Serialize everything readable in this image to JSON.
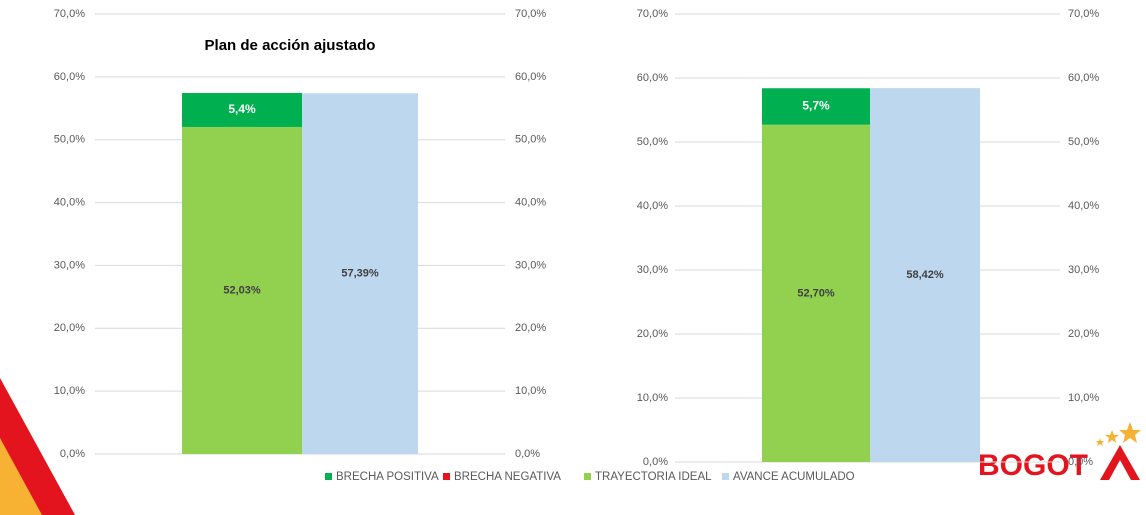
{
  "chart_data": [
    {
      "type": "bar",
      "title": "Plan de acción ajustado",
      "categories": [
        null
      ],
      "ylim": [
        0,
        70
      ],
      "yticks": [
        {
          "value": 0,
          "label": "0,0%"
        },
        {
          "value": 10,
          "label": "10,0%"
        },
        {
          "value": 20,
          "label": "20,0%"
        },
        {
          "value": 30,
          "label": "30,0%"
        },
        {
          "value": 40,
          "label": "40,0%"
        },
        {
          "value": 50,
          "label": "50,0%"
        },
        {
          "value": 60,
          "label": "60,0%"
        },
        {
          "value": 70,
          "label": "70,0%"
        }
      ],
      "y2lim": [
        0,
        70
      ],
      "y2ticks": [
        {
          "value": 0,
          "label": "0,0%"
        },
        {
          "value": 10,
          "label": "10,0%"
        },
        {
          "value": 20,
          "label": "20,0%"
        },
        {
          "value": 30,
          "label": "30,0%"
        },
        {
          "value": 40,
          "label": "40,0%"
        },
        {
          "value": 50,
          "label": "50,0%"
        },
        {
          "value": 60,
          "label": "60,0%"
        },
        {
          "value": 70,
          "label": "70,0%"
        }
      ],
      "grid": true,
      "series": [
        {
          "name": "BRECHA POSITIVA",
          "color": "#00b050",
          "values": [
            5.4
          ],
          "value_labels": [
            "5,4%"
          ]
        },
        {
          "name": "BRECHA NEGATIVA",
          "color": "#e3141d",
          "values": [
            null
          ]
        },
        {
          "name": "TRAYECTORIA IDEAL",
          "color": "#92d050",
          "values": [
            52.03
          ],
          "value_labels": [
            "52,03%"
          ]
        },
        {
          "name": "AVANCE ACUMULADO",
          "color": "#bdd7ee",
          "values": [
            57.39
          ],
          "value_labels": [
            "57,39%"
          ]
        }
      ]
    },
    {
      "type": "bar",
      "categories": [
        null
      ],
      "ylim": [
        0,
        70
      ],
      "yticks": [
        {
          "value": 0,
          "label": "0,0%"
        },
        {
          "value": 10,
          "label": "10,0%"
        },
        {
          "value": 20,
          "label": "20,0%"
        },
        {
          "value": 30,
          "label": "30,0%"
        },
        {
          "value": 40,
          "label": "40,0%"
        },
        {
          "value": 50,
          "label": "50,0%"
        },
        {
          "value": 60,
          "label": "60,0%"
        },
        {
          "value": 70,
          "label": "70,0%"
        }
      ],
      "y2lim": [
        0,
        70
      ],
      "y2ticks": [
        {
          "value": 0,
          "label": "0,0%"
        },
        {
          "value": 10,
          "label": "10,0%"
        },
        {
          "value": 20,
          "label": "20,0%"
        },
        {
          "value": 30,
          "label": "30,0%"
        },
        {
          "value": 40,
          "label": "40,0%"
        },
        {
          "value": 50,
          "label": "50,0%"
        },
        {
          "value": 60,
          "label": "60,0%"
        },
        {
          "value": 70,
          "label": "70,0%"
        }
      ],
      "grid": true,
      "series": [
        {
          "color": "#00b050",
          "values": [
            5.7
          ],
          "value_labels": [
            "5,7%"
          ]
        },
        {
          "color": "#e3141d",
          "values": [
            null
          ]
        },
        {
          "color": "#92d050",
          "values": [
            52.7
          ],
          "value_labels": [
            "52,70%"
          ]
        },
        {
          "color": "#bdd7ee",
          "values": [
            58.42
          ],
          "value_labels": [
            "58,42%"
          ]
        }
      ]
    }
  ],
  "logo": "BOGOT"
}
